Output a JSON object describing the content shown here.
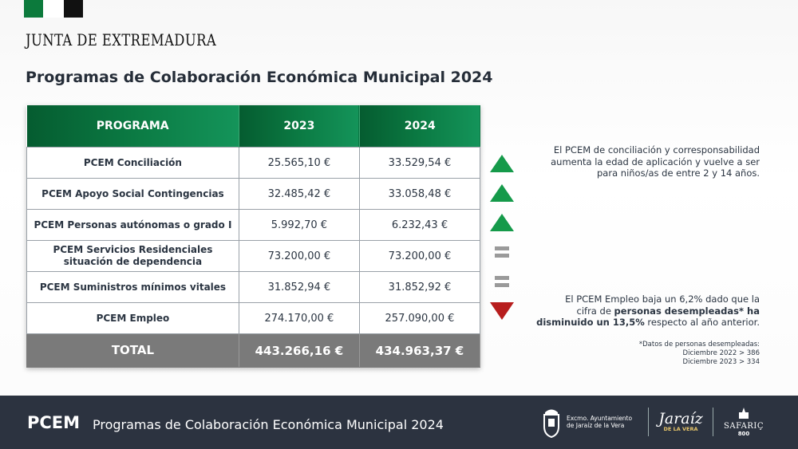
{
  "header": {
    "brand": "JUNTA DE EXTREMADURA",
    "title": "Programas de Colaboración Económica Municipal 2024"
  },
  "colors": {
    "green_flag": "#0c7a3c",
    "black_flag": "#111111",
    "header_green": "#0b7a43",
    "up": "#159a4a",
    "down": "#b71d1d",
    "equal": "#9a9a9a",
    "total_bg": "#7a7a7a",
    "footer_bg": "#2c3340"
  },
  "table": {
    "columns": [
      "PROGRAMA",
      "2023",
      "2024"
    ],
    "rows": [
      {
        "program": "PCEM Conciliación",
        "v2023": "25.565,10 €",
        "v2024": "33.529,54 €",
        "trend": "up"
      },
      {
        "program": "PCEM Apoyo Social Contingencias",
        "v2023": "32.485,42 €",
        "v2024": "33.058,48 €",
        "trend": "up"
      },
      {
        "program": "PCEM Personas autónomas o grado I",
        "v2023": "5.992,70 €",
        "v2024": "6.232,43 €",
        "trend": "up"
      },
      {
        "program_line1": "PCEM Servicios Residenciales",
        "program_line2": "situación de dependencia",
        "v2023": "73.200,00 €",
        "v2024": "73.200,00 €",
        "trend": "equal"
      },
      {
        "program": "PCEM Suministros mínimos vitales",
        "v2023": "31.852,94 €",
        "v2024": "31.852,92 €",
        "trend": "equal"
      },
      {
        "program": "PCEM Empleo",
        "v2023": "274.170,00 €",
        "v2024": "257.090,00 €",
        "trend": "down"
      }
    ],
    "total": {
      "label": "TOTAL",
      "v2023": "443.266,16 €",
      "v2024": "434.963,37 €"
    }
  },
  "notes": {
    "conciliation": {
      "line1": "El PCEM de conciliación y corresponsabilidad",
      "line2": "aumenta la edad de aplicación y vuelve a ser",
      "line3": "para niños/as de entre 2 y 14 años."
    },
    "employment": {
      "line1": "El PCEM Empleo baja un 6,2% dado que la",
      "line2_pre": "cifra de ",
      "line2_bold": "personas desempleadas* ha",
      "line3_bold": "disminuido un 13,5%",
      "line3_post": " respecto al año anterior."
    },
    "footnote": {
      "line1": "*Datos de personas desempleadas:",
      "line2": "Diciembre 2022 > 386",
      "line3": "Diciembre 2023 > 334"
    }
  },
  "footer": {
    "acronym": "PCEM",
    "text": "Programas de Colaboración Económica Municipal 2024",
    "ayuntamiento_line1": "Excmo. Ayuntamiento",
    "ayuntamiento_line2": "de Jaraíz de la Vera",
    "jaraiz_name": "Jaraíz",
    "jaraiz_sub": "DE LA VERA",
    "safaric_name": "SAFARIÇ",
    "safaric_num": "800"
  }
}
